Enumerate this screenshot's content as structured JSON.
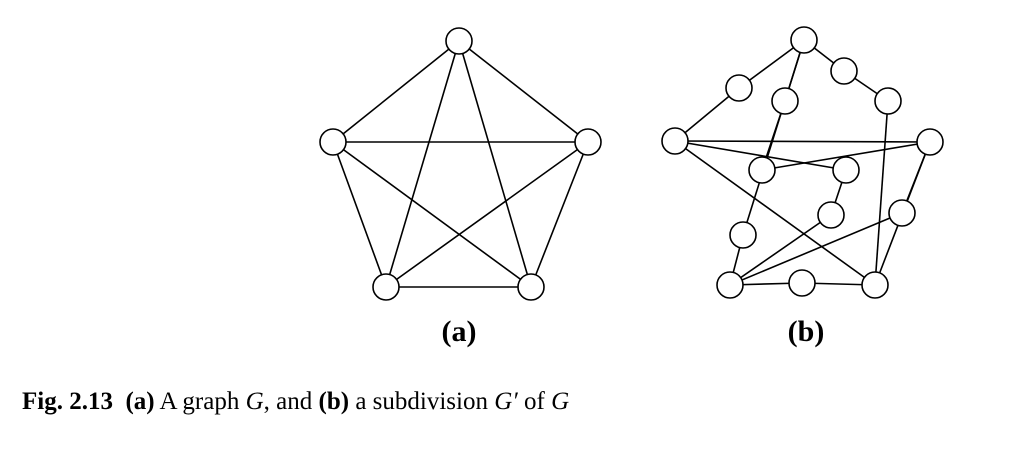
{
  "diagram": {
    "panels": [
      {
        "id": "a",
        "label": "(a)",
        "nodes": [
          "v1",
          "v2",
          "v3",
          "v4",
          "v5"
        ],
        "edges": [
          [
            "v1",
            "v2"
          ],
          [
            "v1",
            "v3"
          ],
          [
            "v1",
            "v4"
          ],
          [
            "v1",
            "v5"
          ],
          [
            "v2",
            "v3"
          ],
          [
            "v2",
            "v4"
          ],
          [
            "v2",
            "v5"
          ],
          [
            "v3",
            "v4"
          ],
          [
            "v3",
            "v5"
          ],
          [
            "v4",
            "v5"
          ]
        ]
      },
      {
        "id": "b",
        "label": "(b)",
        "nodes": [
          "v1",
          "v2",
          "v3",
          "v4",
          "v5",
          "s1",
          "s2",
          "s3",
          "s4",
          "s5",
          "s6",
          "s7",
          "s8",
          "s9",
          "s10"
        ],
        "edges": [
          [
            "v1",
            "s1"
          ],
          [
            "s1",
            "v2"
          ],
          [
            "v1",
            "s2"
          ],
          [
            "s2",
            "s3"
          ],
          [
            "s3",
            "v3"
          ],
          [
            "v1",
            "s4"
          ],
          [
            "s4",
            "v4"
          ],
          [
            "v1",
            "s5"
          ],
          [
            "s5",
            "s6"
          ],
          [
            "s6",
            "v5"
          ],
          [
            "v2",
            "v3"
          ],
          [
            "v2",
            "s7"
          ],
          [
            "s7",
            "s8"
          ],
          [
            "s8",
            "v4"
          ],
          [
            "v2",
            "v5"
          ],
          [
            "v3",
            "s9"
          ],
          [
            "s9",
            "v4"
          ],
          [
            "v3",
            "v5"
          ],
          [
            "v4",
            "s10"
          ],
          [
            "s10",
            "v5"
          ]
        ]
      }
    ]
  },
  "caption": {
    "fig_number": "Fig. 2.13",
    "part_a_label": "(a)",
    "part_a_text": " A graph ",
    "graph_symbol": "G",
    "mid_text": ", and ",
    "part_b_label": "(b)",
    "part_b_text": " a subdivision ",
    "subdivision_symbol": "G′",
    "end_text": " of ",
    "graph_symbol_end": "G"
  }
}
